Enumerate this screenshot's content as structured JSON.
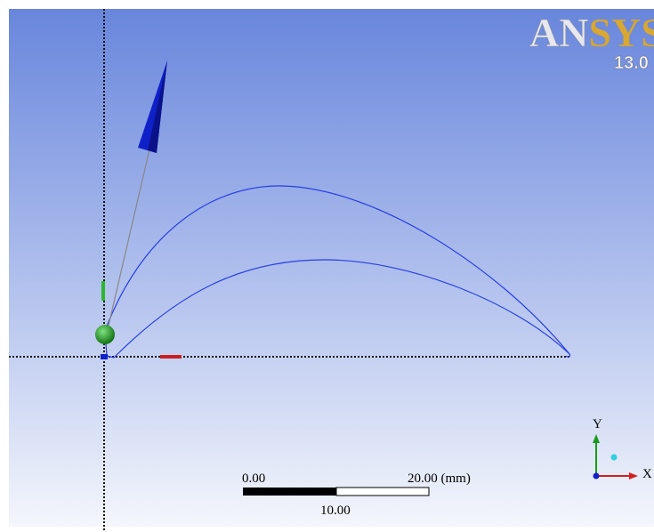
{
  "logo": {
    "name": "ANSYS",
    "version": "13.0"
  },
  "scale_bar": {
    "start_label": "0.00",
    "end_label": "20.00 (mm)",
    "mid_label": "10.00"
  },
  "triad": {
    "y_label": "Y",
    "x_label": "X"
  }
}
